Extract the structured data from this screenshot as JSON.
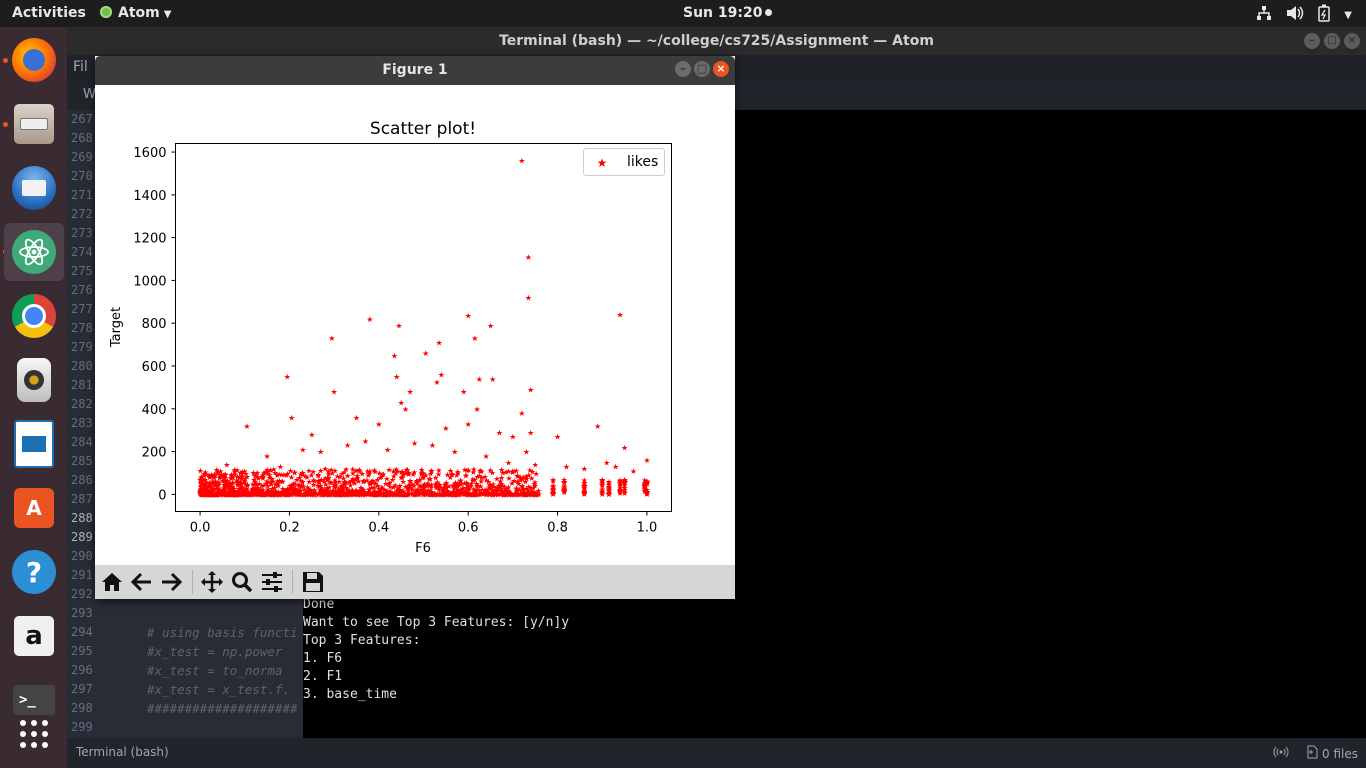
{
  "topbar": {
    "activities": "Activities",
    "app_name": "Atom",
    "clock": "Sun 19:20"
  },
  "dock": {
    "items": [
      {
        "name": "firefox",
        "icon": "firefox-icon",
        "color": "#e66000"
      },
      {
        "name": "files",
        "icon": "files-icon",
        "color": "#8a7a6a"
      },
      {
        "name": "thunderbird",
        "icon": "thunderbird-icon",
        "color": "#2a6fbf"
      },
      {
        "name": "atom",
        "icon": "atom-icon",
        "color": "#3fa97a"
      },
      {
        "name": "chrome",
        "icon": "chrome-icon",
        "color": "#dd4b39"
      },
      {
        "name": "rhythmbox",
        "icon": "rhythmbox-icon",
        "color": "#c8a43a"
      },
      {
        "name": "libreoffice-impress",
        "icon": "impress-icon",
        "color": "#1e6fb0"
      },
      {
        "name": "software",
        "icon": "software-icon",
        "color": "#e95420"
      },
      {
        "name": "help",
        "icon": "help-icon",
        "color": "#2c8fd6"
      },
      {
        "name": "amazon",
        "icon": "amazon-icon",
        "color": "#f0f0f0"
      },
      {
        "name": "terminal",
        "icon": "terminal-icon",
        "color": "#444444"
      },
      {
        "name": "show-apps",
        "icon": "apps-grid-icon",
        "color": "#ffffff"
      }
    ]
  },
  "atom": {
    "title": "Terminal (bash) — ~/college/cs725/Assignment — Atom",
    "menu_file": "Fil",
    "tab_label": "W",
    "gutter_lines": [
      "267",
      "268",
      "269",
      "270",
      "271",
      "272",
      "273",
      "274",
      "275",
      "276",
      "277",
      "278",
      "279",
      "280",
      "281",
      "282",
      "283",
      "284",
      "285",
      "286",
      "287",
      "288",
      "289",
      "290",
      "291",
      "292",
      "293",
      "294",
      "295",
      "296",
      "297",
      "298",
      "299"
    ],
    "code_lines": [
      {
        "line": "294",
        "text": "# using basis functi"
      },
      {
        "line": "295",
        "text": "#x_test = np.power"
      },
      {
        "line": "296",
        "text": "#x_test = to_norma"
      },
      {
        "line": "297",
        "text": "#x_test = x_test.f."
      },
      {
        "line": "298",
        "text": "####################"
      }
    ],
    "terminal_lines": [
      "Done",
      "Want to see Top 3 Features: [y/n]y",
      "Top 3 Features:",
      "1. F6",
      "2. F1",
      "3. base_time"
    ],
    "status_left": "Terminal (bash)",
    "status_files": "0 files"
  },
  "figure": {
    "window_title": "Figure 1",
    "toolbar": [
      "home-icon",
      "back-arrow-icon",
      "forward-arrow-icon",
      "pan-icon",
      "zoom-icon",
      "configure-subplots-icon",
      "save-icon"
    ]
  },
  "chart_data": {
    "type": "scatter",
    "title": "Scatter plot!",
    "xlabel": "F6",
    "ylabel": "Target",
    "xlim": [
      -0.055,
      1.055
    ],
    "ylim": [
      -80,
      1640
    ],
    "xticks": [
      "0.0",
      "0.2",
      "0.4",
      "0.6",
      "0.8",
      "1.0"
    ],
    "yticks": [
      "0",
      "200",
      "400",
      "600",
      "800",
      "1000",
      "1200",
      "1400",
      "1600"
    ],
    "legend": {
      "label": "likes",
      "position": "top-right"
    },
    "marker": "*",
    "color": "#ff0000",
    "series": [
      {
        "name": "likes",
        "x": [
          0.72,
          0.735,
          0.735,
          0.38,
          0.445,
          0.6,
          0.65,
          0.94,
          0.295,
          0.435,
          0.615,
          0.535,
          0.505,
          0.54,
          0.53,
          0.625,
          0.655,
          0.74,
          0.195,
          0.44,
          0.47,
          0.3,
          0.45,
          0.59,
          0.62,
          0.72,
          0.89,
          0.105,
          0.205,
          0.25,
          0.35,
          0.4,
          0.46,
          0.55,
          0.6,
          0.67,
          0.7,
          0.74,
          0.8,
          0.95,
          1.0,
          0.06,
          0.15,
          0.23,
          0.27,
          0.33,
          0.37,
          0.42,
          0.48,
          0.52,
          0.57,
          0.64,
          0.69,
          0.73,
          0.75,
          0.82,
          0.86,
          0.91,
          0.93,
          0.97,
          0.02,
          0.1,
          0.18,
          0.28,
          0.38,
          0.5,
          0.63
        ],
        "y": [
          1560,
          1110,
          920,
          820,
          790,
          835,
          790,
          840,
          730,
          650,
          730,
          710,
          660,
          560,
          525,
          540,
          540,
          490,
          550,
          550,
          480,
          480,
          430,
          480,
          400,
          380,
          320,
          320,
          360,
          280,
          360,
          330,
          400,
          310,
          330,
          290,
          270,
          290,
          270,
          220,
          160,
          140,
          180,
          210,
          200,
          230,
          250,
          210,
          240,
          230,
          200,
          180,
          150,
          200,
          140,
          130,
          120,
          150,
          130,
          110,
          90,
          110,
          130,
          120,
          110,
          100,
          80
        ]
      }
    ],
    "dense_band_note": "",
    "grid": false
  }
}
